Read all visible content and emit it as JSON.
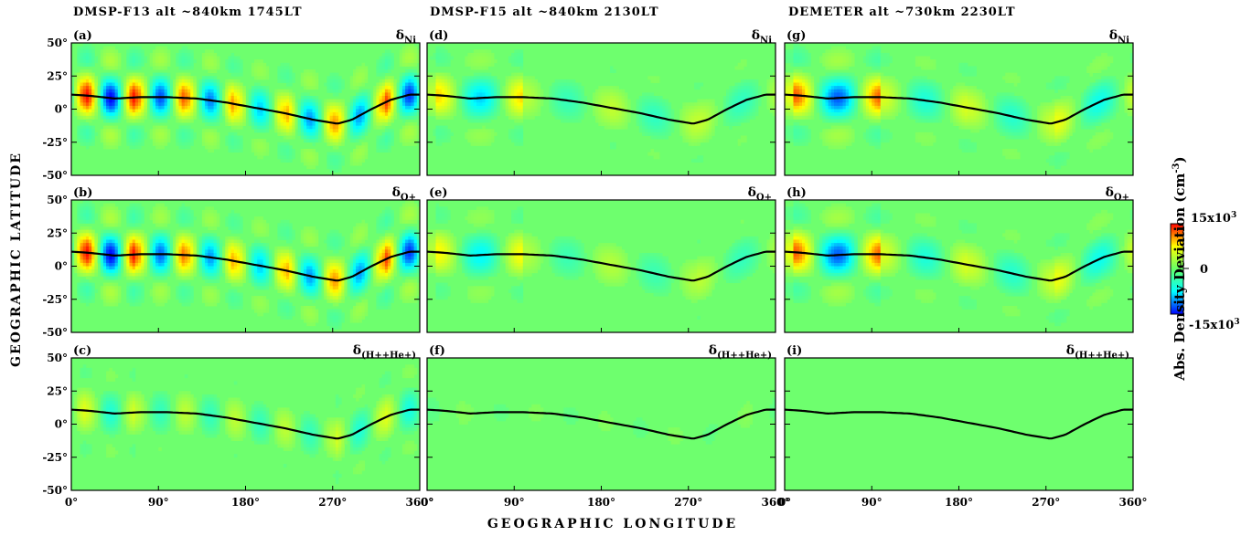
{
  "headers": [
    "DMSP-F13   alt ~840km   1745LT",
    "DMSP-F15   alt ~840km   2130LT",
    "DEMETER   alt ~730km   2230LT"
  ],
  "ylabel": "GEOGRAPHIC LATITUDE",
  "xlabel": "GEOGRAPHIC LONGITUDE",
  "colorbar": {
    "label": "Abs. Density Deviation (cm",
    "label_sup": "-3",
    "label_end": ")",
    "top": "15x10",
    "top_sup": "3",
    "mid": "0",
    "bottom": "-15x10",
    "bottom_sup": "3",
    "colors": [
      "#ff0000",
      "#ffff00",
      "#66ff66",
      "#00ffff",
      "#0000ff"
    ]
  },
  "chart_data": {
    "type": "heatmap",
    "description_units": "density deviation, cm^-3",
    "x_ticks": [
      "0°",
      "90°",
      "180°",
      "270°",
      "360°"
    ],
    "x_tick_values": [
      0,
      90,
      180,
      270,
      360
    ],
    "y_ticks": [
      "50°",
      "25°",
      "0°",
      "-25°",
      "-50°"
    ],
    "y_tick_values": [
      50,
      25,
      0,
      -25,
      -50
    ],
    "xlim": [
      0,
      360
    ],
    "ylim": [
      -50,
      50
    ],
    "clim": [
      -15000,
      15000
    ],
    "magnetic_equator": [
      [
        0,
        11
      ],
      [
        20,
        10
      ],
      [
        45,
        8
      ],
      [
        70,
        9
      ],
      [
        100,
        9
      ],
      [
        130,
        8
      ],
      [
        160,
        5
      ],
      [
        190,
        1
      ],
      [
        220,
        -3
      ],
      [
        250,
        -8
      ],
      [
        275,
        -11
      ],
      [
        290,
        -8
      ],
      [
        310,
        0
      ],
      [
        330,
        7
      ],
      [
        350,
        11
      ],
      [
        360,
        11
      ]
    ],
    "panels": [
      {
        "id": "a",
        "label": "(a)",
        "quantity": "Ni",
        "k": 7,
        "phase": 15,
        "amp": 1.0,
        "nodes": [
          1.0,
          0.85,
          0.75,
          0.6,
          0.7,
          0.7,
          0.9
        ]
      },
      {
        "id": "d",
        "label": "(d)",
        "quantity": "Ni",
        "k": 4,
        "phase": 100,
        "amp": 0.65,
        "nodes": [
          0.4,
          0.45,
          0.45,
          0.9
        ]
      },
      {
        "id": "g",
        "label": "(g)",
        "quantity": "Ni",
        "k": 4,
        "phase": 100,
        "amp": 0.75,
        "nodes": [
          0.5,
          0.45,
          0.6,
          1.1
        ]
      },
      {
        "id": "b",
        "label": "(b)",
        "quantity": "O+",
        "k": 7,
        "phase": 15,
        "amp": 1.0,
        "nodes": [
          1.0,
          0.8,
          0.7,
          0.6,
          0.7,
          0.7,
          0.9
        ]
      },
      {
        "id": "e",
        "label": "(e)",
        "quantity": "O+",
        "k": 4,
        "phase": 100,
        "amp": 0.6,
        "nodes": [
          0.4,
          0.4,
          0.45,
          0.85
        ]
      },
      {
        "id": "h",
        "label": "(h)",
        "quantity": "O+",
        "k": 4,
        "phase": 100,
        "amp": 0.75,
        "nodes": [
          0.5,
          0.45,
          0.6,
          1.1
        ]
      },
      {
        "id": "c",
        "label": "(c)",
        "quantity": "(H++He+)",
        "k": 7,
        "phase": 15,
        "amp": 0.45,
        "nodes": [
          0.8,
          0.6,
          0.6,
          0.6,
          0.6,
          0.8,
          0.9
        ]
      },
      {
        "id": "f",
        "label": "(f)",
        "quantity": "(H++He+)",
        "k": 5,
        "phase": 40,
        "amp": 0.15,
        "nodes": [
          0.5,
          0.5,
          0.5,
          0.5,
          0.6
        ]
      },
      {
        "id": "i",
        "label": "(i)",
        "quantity": "(H++He+)",
        "k": 0,
        "phase": 0,
        "amp": 0.0,
        "nodes": []
      }
    ]
  }
}
